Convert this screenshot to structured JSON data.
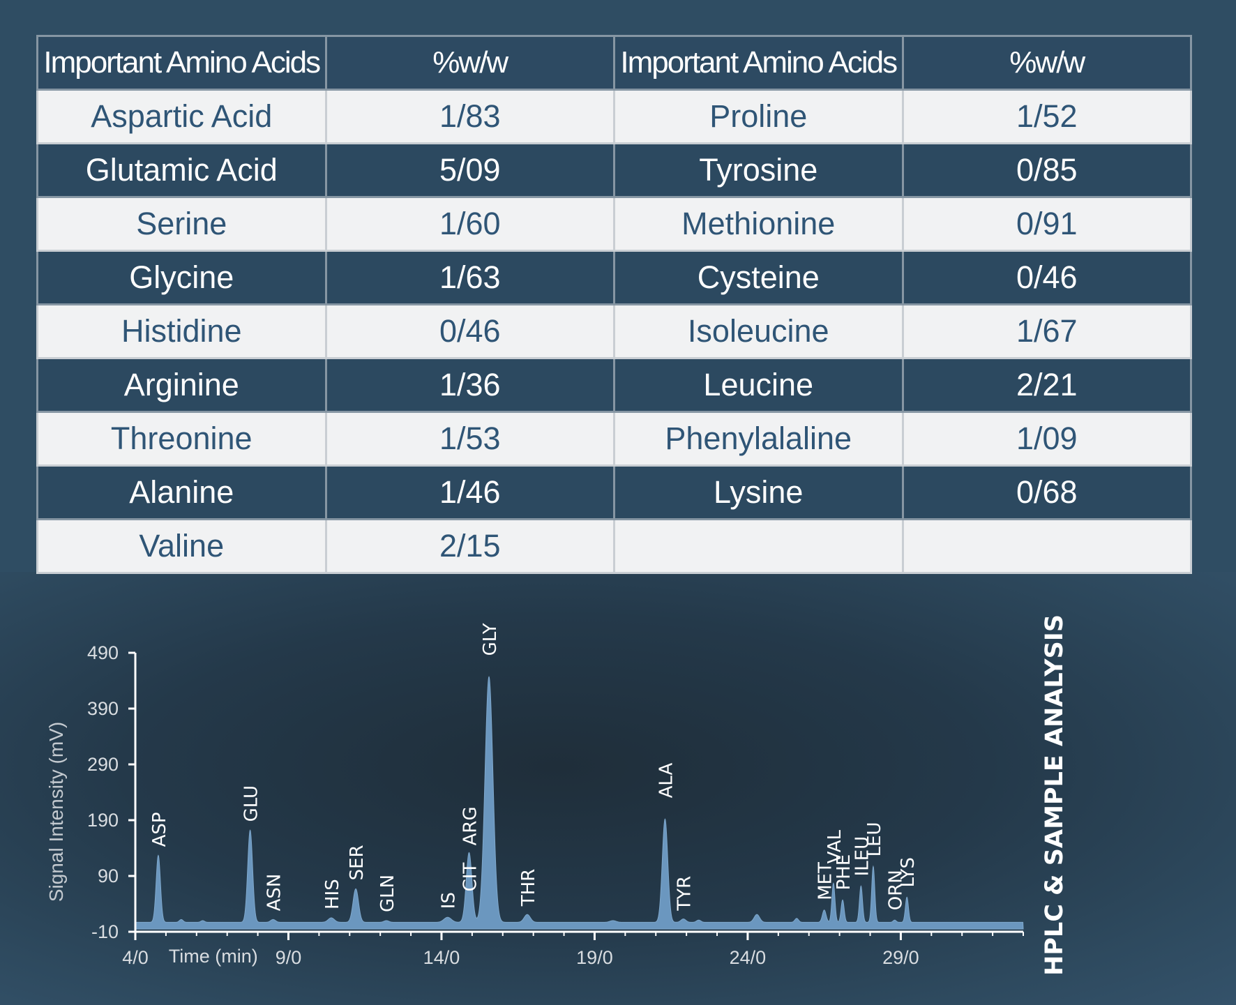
{
  "table": {
    "headers": [
      "Important Amino Acids",
      "%w/w",
      "Important Amino Acids",
      "%w/w"
    ],
    "rows": [
      [
        "Aspartic Acid",
        "1/83",
        "Proline",
        "1/52"
      ],
      [
        "Glutamic Acid",
        "5/09",
        "Tyrosine",
        "0/85"
      ],
      [
        "Serine",
        "1/60",
        "Methionine",
        "0/91"
      ],
      [
        "Glycine",
        "1/63",
        "Cysteine",
        "0/46"
      ],
      [
        "Histidine",
        "0/46",
        "Isoleucine",
        "1/67"
      ],
      [
        "Arginine",
        "1/36",
        "Leucine",
        "2/21"
      ],
      [
        "Threonine",
        "1/53",
        "Phenylalaline",
        "1/09"
      ],
      [
        "Alanine",
        "1/46",
        "Lysine",
        "0/68"
      ],
      [
        "Valine",
        "2/15",
        "",
        ""
      ]
    ]
  },
  "side_title": "HPLC & SAMPLE ANALYSIS",
  "colors": {
    "peak_fill": "#6b97bf",
    "axis": "#ffffff",
    "label_text": "#ffffff"
  },
  "chart_data": {
    "type": "area",
    "title": "HPLC & SAMPLE ANALYSIS",
    "xlabel": "Time (min)",
    "ylabel": "Signal Intensity (mV)",
    "xlim": [
      4.0,
      33.0
    ],
    "ylim": [
      -10,
      490
    ],
    "x_ticks": [
      4,
      9,
      14,
      19,
      24,
      29
    ],
    "x_tick_labels": [
      "4/0",
      "9/0",
      "14/0",
      "19/0",
      "24/0",
      "29/0"
    ],
    "y_ticks": [
      -10,
      90,
      190,
      290,
      390,
      490
    ],
    "y_tick_labels": [
      "-10",
      "90",
      "190",
      "290",
      "390",
      "490"
    ],
    "baseline": 7,
    "peaks": [
      {
        "name": "ASP",
        "time": 4.75,
        "height": 120,
        "width": 0.07,
        "labeled": true,
        "label_above": 12
      },
      {
        "name": "GLU",
        "time": 7.75,
        "height": 165,
        "width": 0.08,
        "labeled": true,
        "label_above": 12
      },
      {
        "name": "ASN",
        "time": 8.5,
        "height": 5,
        "width": 0.08,
        "labeled": true,
        "label_above": 12
      },
      {
        "name": "HIS",
        "time": 10.4,
        "height": 8,
        "width": 0.1,
        "labeled": true,
        "label_above": 12
      },
      {
        "name": "SER",
        "time": 11.2,
        "height": 60,
        "width": 0.09,
        "labeled": true,
        "label_above": 12
      },
      {
        "name": "GLN",
        "time": 12.2,
        "height": 3,
        "width": 0.08,
        "labeled": true,
        "label_above": 12
      },
      {
        "name": "IS",
        "time": 14.2,
        "height": 9,
        "width": 0.12,
        "labeled": true,
        "label_above": 12
      },
      {
        "name": "CIT",
        "time": 14.9,
        "height": 40,
        "width": 0.1,
        "labeled": true,
        "label_above": 12
      },
      {
        "name": "ARG",
        "time": 14.9,
        "height": 85,
        "width": 0.09,
        "labeled": true,
        "label_above": 42
      },
      {
        "name": "GLY",
        "time": 15.55,
        "height": 440,
        "width": 0.13,
        "labeled": true,
        "label_above": 30
      },
      {
        "name": "THR",
        "time": 16.8,
        "height": 14,
        "width": 0.1,
        "labeled": true,
        "label_above": 12
      },
      {
        "name": "",
        "time": 5.5,
        "height": 5,
        "width": 0.06,
        "labeled": false,
        "label_above": 0
      },
      {
        "name": "",
        "time": 6.2,
        "height": 3,
        "width": 0.06,
        "labeled": false,
        "label_above": 0
      },
      {
        "name": "",
        "time": 19.6,
        "height": 3,
        "width": 0.1,
        "labeled": false,
        "label_above": 0
      },
      {
        "name": "ALA",
        "time": 21.3,
        "height": 185,
        "width": 0.09,
        "labeled": true,
        "label_above": 30
      },
      {
        "name": "TYR",
        "time": 21.9,
        "height": 6,
        "width": 0.08,
        "labeled": true,
        "label_above": 12
      },
      {
        "name": "",
        "time": 22.4,
        "height": 4,
        "width": 0.07,
        "labeled": false,
        "label_above": 0
      },
      {
        "name": "",
        "time": 24.3,
        "height": 14,
        "width": 0.09,
        "labeled": false,
        "label_above": 0
      },
      {
        "name": "",
        "time": 25.6,
        "height": 7,
        "width": 0.06,
        "labeled": false,
        "label_above": 0
      },
      {
        "name": "MET",
        "time": 26.5,
        "height": 22,
        "width": 0.06,
        "labeled": true,
        "label_above": 14
      },
      {
        "name": "VAL",
        "time": 26.8,
        "height": 70,
        "width": 0.05,
        "labeled": true,
        "label_above": 28
      },
      {
        "name": "PHE",
        "time": 27.1,
        "height": 40,
        "width": 0.05,
        "labeled": true,
        "label_above": 14
      },
      {
        "name": "ILEU",
        "time": 27.7,
        "height": 65,
        "width": 0.05,
        "labeled": true,
        "label_above": 14
      },
      {
        "name": "LEU",
        "time": 28.1,
        "height": 100,
        "width": 0.05,
        "labeled": true,
        "label_above": 14
      },
      {
        "name": "ORN",
        "time": 28.8,
        "height": 4,
        "width": 0.05,
        "labeled": true,
        "label_above": 14
      },
      {
        "name": "LYS",
        "time": 29.2,
        "height": 45,
        "width": 0.05,
        "labeled": true,
        "label_above": 14
      }
    ]
  }
}
